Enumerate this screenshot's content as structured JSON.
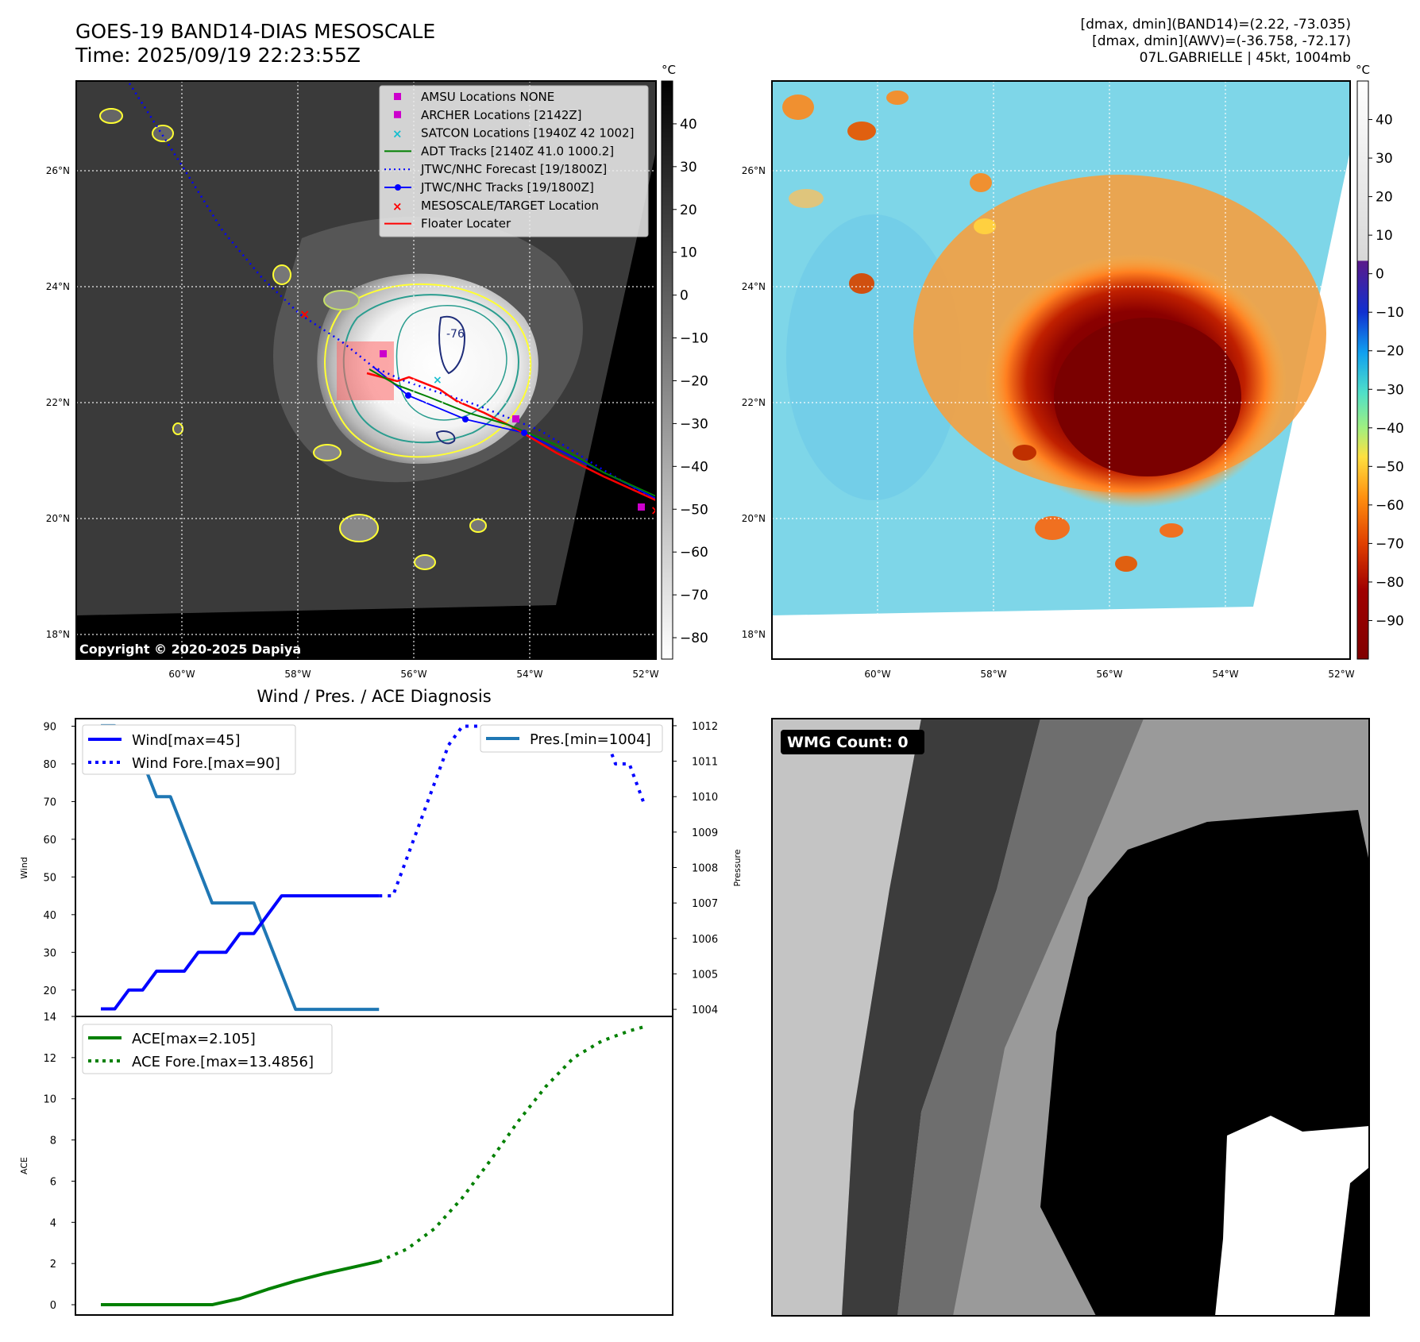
{
  "header": {
    "title_line1": "GOES-19 BAND14-DIAS MESOSCALE",
    "title_line2": "Time: 2025/09/19 22:23:55Z",
    "info_line1": "[dmax, dmin](BAND14)=(2.22, -73.035)",
    "info_line2": "[dmax, dmin](AWV)=(-36.758, -72.17)",
    "info_line3": "07L.GABRIELLE | 45kt, 1004mb"
  },
  "map_axes": {
    "lon_labels": [
      "60°W",
      "58°W",
      "56°W",
      "54°W",
      "52°W"
    ],
    "lat_labels": [
      "26°N",
      "24°N",
      "22°N",
      "20°N",
      "18°N"
    ],
    "lon_values": [
      -60,
      -58,
      -56,
      -54,
      -52
    ],
    "lat_values": [
      26,
      24,
      22,
      20,
      18
    ]
  },
  "ir_panel": {
    "copyright": "Copyright © 2020-2025 Dapiya",
    "colorbar_unit": "°C",
    "colorbar_ticks": [
      "40",
      "30",
      "20",
      "10",
      "0",
      "−10",
      "−20",
      "−30",
      "−40",
      "−50",
      "−60",
      "−70",
      "−80"
    ],
    "contour_label": "-76",
    "legend": [
      {
        "marker": "square",
        "color": "#cc00cc",
        "label": "AMSU Locations NONE"
      },
      {
        "marker": "square",
        "color": "#cc00cc",
        "label": "ARCHER Locations [2142Z]"
      },
      {
        "marker": "x",
        "color": "#17becf",
        "label": "SATCON Locations [1940Z 42 1002]"
      },
      {
        "marker": "line",
        "color": "#008000",
        "label": "ADT Tracks [2140Z 41.0 1000.2]"
      },
      {
        "marker": "dotted",
        "color": "#0000ff",
        "label": "JTWC/NHC Forecast [19/1800Z]"
      },
      {
        "marker": "line-dot",
        "color": "#0000ff",
        "label": "JTWC/NHC Tracks [19/1800Z]"
      },
      {
        "marker": "x",
        "color": "#ff0000",
        "label": "MESOSCALE/TARGET Location"
      },
      {
        "marker": "line",
        "color": "#ff0000",
        "label": "Floater Locater"
      }
    ]
  },
  "awv_panel": {
    "colorbar_unit": "°C",
    "colorbar_ticks": [
      "40",
      "30",
      "20",
      "10",
      "0",
      "−10",
      "−20",
      "−30",
      "−40",
      "−50",
      "−60",
      "−70",
      "−80",
      "−90"
    ]
  },
  "wind_chart": {
    "title": "Wind / Pres. / ACE Diagnosis",
    "ylabel_left": "Wind",
    "ylabel_right": "Pressure",
    "left_ticks": [
      "90",
      "80",
      "70",
      "60",
      "50",
      "40",
      "30",
      "20"
    ],
    "right_ticks": [
      "1012",
      "1011",
      "1010",
      "1009",
      "1008",
      "1007",
      "1006",
      "1005",
      "1004"
    ],
    "legend_wind": "Wind[max=45]",
    "legend_wind_fore": "Wind Fore.[max=90]",
    "legend_pres": "Pres.[min=1004]",
    "colors": {
      "wind": "#0000ff",
      "pres": "#1f77b4"
    }
  },
  "ace_chart": {
    "ylabel": "ACE",
    "ticks": [
      "14",
      "12",
      "10",
      "8",
      "6",
      "4",
      "2",
      "0"
    ],
    "legend_ace": "ACE[max=2.105]",
    "legend_ace_fore": "ACE Fore.[max=13.4856]",
    "color": "#008000"
  },
  "wmg_panel": {
    "badge": "WMG Count: 0"
  },
  "chart_data": [
    {
      "type": "line",
      "title": "Wind / Pres. / ACE Diagnosis",
      "ylabel": "Wind",
      "ylim": [
        13,
        92
      ],
      "series": [
        {
          "name": "Wind[max=45]",
          "x": [
            0,
            1,
            2,
            3,
            4,
            5,
            6,
            7,
            8,
            9,
            10,
            11,
            12,
            13,
            14,
            15,
            16,
            17,
            18,
            19,
            20
          ],
          "values": [
            15,
            15,
            20,
            20,
            25,
            25,
            25,
            30,
            30,
            30,
            35,
            35,
            40,
            45,
            45,
            45,
            45,
            45,
            45,
            45,
            45
          ]
        },
        {
          "name": "Wind Fore.[max=90]",
          "x": [
            20,
            21,
            22,
            23,
            24,
            25,
            26,
            27,
            28,
            29,
            30,
            31,
            32,
            33,
            34,
            35,
            36,
            37,
            38,
            39
          ],
          "values": [
            45,
            45,
            55,
            65,
            75,
            85,
            90,
            90,
            90,
            90,
            90,
            90,
            90,
            90,
            90,
            90,
            90,
            80,
            80,
            70
          ]
        }
      ]
    },
    {
      "type": "line",
      "ylabel": "Pressure",
      "ylim": [
        1003.8,
        1012.2
      ],
      "series": [
        {
          "name": "Pres.[min=1004]",
          "x": [
            0,
            1,
            2,
            3,
            4,
            5,
            6,
            7,
            8,
            9,
            10,
            11,
            12,
            13,
            14,
            15,
            16,
            17,
            18,
            19,
            20
          ],
          "values": [
            1012,
            1012,
            1011,
            1011,
            1010,
            1010,
            1009,
            1008,
            1007,
            1007,
            1007,
            1007,
            1006,
            1005,
            1004,
            1004,
            1004,
            1004,
            1004,
            1004,
            1004
          ]
        }
      ]
    },
    {
      "type": "line",
      "ylabel": "ACE",
      "ylim": [
        -0.5,
        14
      ],
      "series": [
        {
          "name": "ACE[max=2.105]",
          "x": [
            0,
            2,
            4,
            6,
            8,
            10,
            12,
            14,
            16,
            18,
            20
          ],
          "values": [
            0,
            0,
            0,
            0,
            0,
            0.3,
            0.75,
            1.15,
            1.5,
            1.8,
            2.105
          ]
        },
        {
          "name": "ACE Fore.[max=13.4856]",
          "x": [
            20,
            22,
            24,
            26,
            28,
            30,
            32,
            34,
            36,
            38,
            39
          ],
          "values": [
            2.105,
            2.7,
            3.7,
            5.2,
            7.0,
            8.9,
            10.6,
            12.0,
            12.8,
            13.3,
            13.4856
          ]
        }
      ]
    }
  ]
}
